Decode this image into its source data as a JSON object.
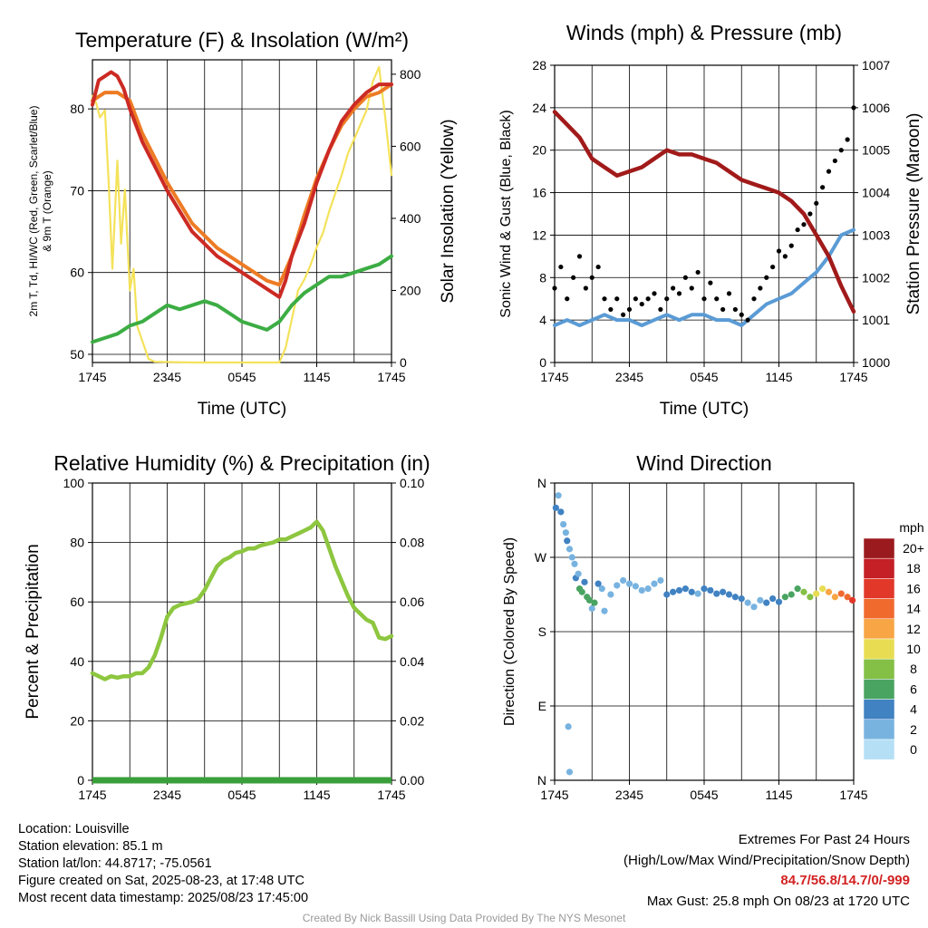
{
  "colors": {
    "temp": "#cc2a24",
    "dewpoint": "#3cad44",
    "heat_index": "#ed7b24",
    "solar": "#f4e25a",
    "wind": "#5a9bd5",
    "gust": "#000000",
    "pressure": "#a11a1a",
    "rh": "#8dc63f",
    "precip": "#3a9f3a",
    "extremes_text": "#d32222"
  },
  "chart_data": [
    {
      "type": "line",
      "title": "Temperature (F) & Insolation (W/m²)",
      "xlabel": "Time (UTC)",
      "ylabel": "2m T, Td, HI/WC (Red, Green, Scarlet/Blue) & 9m T (Orange)",
      "y2label": "Solar Insolation (Yellow)",
      "x_ticks": [
        "1745",
        "2345",
        "0545",
        "1145",
        "1745"
      ],
      "x_range_hours": [
        0,
        24
      ],
      "ylim": [
        49,
        86
      ],
      "y_ticks": [
        50,
        60,
        70,
        80
      ],
      "y2lim": [
        0,
        840
      ],
      "y2_ticks": [
        0,
        200,
        400,
        600,
        800
      ],
      "grid": true,
      "series": [
        {
          "name": "2m T",
          "color_key": "temp",
          "x": [
            0,
            0.5,
            1,
            1.5,
            2,
            2.5,
            3,
            4,
            5,
            6,
            8,
            10,
            12,
            14,
            15,
            15.5,
            16,
            17,
            18,
            19,
            20,
            21,
            22,
            23,
            24
          ],
          "values": [
            80.5,
            83.5,
            84,
            84.5,
            84,
            82.5,
            80,
            76,
            73,
            70,
            65,
            62,
            60,
            58,
            57,
            59,
            62,
            66,
            71,
            75,
            78.5,
            80.5,
            82,
            83,
            83
          ]
        },
        {
          "name": "9m T",
          "color_key": "heat_index",
          "x": [
            0,
            0.5,
            1,
            2,
            3,
            4,
            5,
            6,
            8,
            10,
            12,
            14,
            15,
            16,
            17,
            18,
            19,
            20,
            21,
            22,
            23,
            24
          ],
          "values": [
            81,
            81.5,
            82,
            82,
            81,
            77,
            74,
            71,
            66,
            63,
            61,
            59,
            58.5,
            62,
            67,
            71.5,
            75,
            78,
            80,
            81.5,
            82,
            83
          ]
        },
        {
          "name": "2m Td",
          "color_key": "dewpoint",
          "x": [
            0,
            1,
            2,
            3,
            4,
            5,
            6,
            7,
            8,
            9,
            10,
            11,
            12,
            13,
            14,
            15,
            16,
            17,
            18,
            19,
            20,
            21,
            22,
            23,
            24
          ],
          "values": [
            51.5,
            52,
            52.5,
            53.5,
            54,
            55,
            56,
            55.5,
            56,
            56.5,
            56,
            55,
            54,
            53.5,
            53,
            54,
            56,
            57.5,
            58.5,
            59.5,
            59.5,
            60,
            60.5,
            61,
            62
          ]
        },
        {
          "name": "Solar Insolation",
          "color_key": "solar",
          "axis": "y2",
          "x": [
            0,
            0.3,
            0.6,
            1,
            1.3,
            1.6,
            2,
            2.3,
            2.6,
            3,
            3.3,
            3.6,
            4,
            4.5,
            5,
            8,
            11,
            13,
            15,
            15.5,
            16,
            16.5,
            17,
            17.5,
            18,
            18.5,
            19,
            19.5,
            20,
            20.5,
            21,
            21.5,
            22,
            22.5,
            23,
            23.5,
            24
          ],
          "values": [
            740,
            720,
            680,
            700,
            500,
            260,
            560,
            330,
            480,
            200,
            260,
            100,
            60,
            10,
            2,
            0,
            0,
            0,
            0,
            40,
            120,
            200,
            230,
            270,
            320,
            360,
            420,
            470,
            520,
            580,
            620,
            660,
            700,
            780,
            820,
            680,
            520
          ]
        }
      ]
    },
    {
      "type": "line",
      "title": "Winds (mph) & Pressure (mb)",
      "xlabel": "Time (UTC)",
      "ylabel": "Sonic Wind & Gust (Blue, Black)",
      "y2label": "Station Pressure (Maroon)",
      "x_ticks": [
        "1745",
        "2345",
        "0545",
        "1145",
        "1745"
      ],
      "x_range_hours": [
        0,
        24
      ],
      "ylim": [
        0,
        28
      ],
      "y_ticks": [
        0,
        4,
        8,
        12,
        16,
        20,
        24,
        28
      ],
      "y2lim": [
        1000,
        1007
      ],
      "y2_ticks": [
        1000,
        1001,
        1002,
        1003,
        1004,
        1005,
        1006,
        1007
      ],
      "grid": true,
      "series": [
        {
          "name": "Sonic Wind",
          "color_key": "wind",
          "x": [
            0,
            1,
            2,
            3,
            4,
            5,
            6,
            7,
            8,
            9,
            10,
            11,
            12,
            13,
            14,
            15,
            16,
            17,
            18,
            19,
            20,
            21,
            22,
            23,
            24
          ],
          "values": [
            3.5,
            4,
            3.5,
            4,
            4.5,
            4,
            4,
            3.5,
            4,
            4.5,
            4,
            4.5,
            4.5,
            4,
            4,
            3.5,
            4.5,
            5.5,
            6,
            6.5,
            7.5,
            8.5,
            10,
            12,
            12.5
          ]
        },
        {
          "name": "Gust",
          "color_key": "gust",
          "style": "points",
          "x": [
            0,
            0.5,
            1,
            1.5,
            2,
            2.5,
            3,
            3.5,
            4,
            4.5,
            5,
            5.5,
            6,
            6.5,
            7,
            7.5,
            8,
            8.5,
            9,
            9.5,
            10,
            10.5,
            11,
            11.5,
            12,
            12.5,
            13,
            13.5,
            14,
            14.5,
            15,
            15.5,
            16,
            16.5,
            17,
            17.5,
            18,
            18.5,
            19,
            19.5,
            20,
            20.5,
            21,
            21.5,
            22,
            22.5,
            23,
            23.5,
            24
          ],
          "values": [
            7,
            9,
            6,
            8,
            10,
            7,
            8,
            9,
            6,
            5,
            6,
            4.5,
            5,
            6,
            5.5,
            6,
            6.5,
            5,
            6,
            7,
            6.5,
            8,
            7,
            8.5,
            6,
            7.5,
            6,
            5,
            6.5,
            5,
            4.5,
            4,
            6,
            7,
            8,
            9,
            10.5,
            10,
            11,
            12.5,
            13,
            14,
            15,
            16.5,
            18,
            19,
            20,
            21,
            24
          ]
        },
        {
          "name": "Station Pressure",
          "color_key": "pressure",
          "axis": "y2",
          "x": [
            0,
            1,
            2,
            3,
            4,
            5,
            6,
            7,
            8,
            9,
            10,
            11,
            12,
            13,
            14,
            15,
            16,
            17,
            18,
            19,
            20,
            21,
            22,
            23,
            24
          ],
          "values": [
            1005.9,
            1005.6,
            1005.3,
            1004.8,
            1004.6,
            1004.4,
            1004.5,
            1004.6,
            1004.8,
            1005.0,
            1004.9,
            1004.9,
            1004.8,
            1004.7,
            1004.5,
            1004.3,
            1004.2,
            1004.1,
            1004.0,
            1003.8,
            1003.5,
            1003.0,
            1002.5,
            1001.8,
            1001.2
          ]
        }
      ]
    },
    {
      "type": "line",
      "title": "Relative Humidity (%) & Precipitation (in)",
      "xlabel": "",
      "ylabel": "Percent & Precipitation",
      "x_ticks": [
        "1745",
        "2345",
        "0545",
        "1145",
        "1745"
      ],
      "x_range_hours": [
        0,
        24
      ],
      "ylim": [
        0,
        100
      ],
      "y_ticks": [
        0,
        20,
        40,
        60,
        80,
        100
      ],
      "y2lim": [
        0,
        0.1
      ],
      "y2_ticks": [
        "0.00",
        "0.02",
        "0.04",
        "0.06",
        "0.08",
        "0.10"
      ],
      "grid": true,
      "series": [
        {
          "name": "Relative Humidity",
          "color_key": "rh",
          "x": [
            0,
            0.5,
            1,
            1.5,
            2,
            2.5,
            3,
            3.5,
            4,
            4.5,
            5,
            5.5,
            6,
            6.5,
            7,
            7.5,
            8,
            8.5,
            9,
            9.5,
            10,
            10.5,
            11,
            11.5,
            12,
            12.5,
            13,
            13.5,
            14,
            14.5,
            15,
            15.5,
            16,
            16.5,
            17,
            17.5,
            18,
            18.5,
            19,
            19.5,
            20,
            20.5,
            21,
            21.5,
            22,
            22.5,
            23,
            23.5,
            24
          ],
          "values": [
            36,
            35,
            34,
            35,
            34.5,
            35,
            35,
            36,
            36,
            38,
            42,
            48,
            55,
            58,
            59,
            59.5,
            60,
            61,
            64,
            68,
            72,
            74,
            75,
            76.5,
            77,
            78,
            78,
            79,
            79.5,
            80,
            81,
            81,
            82,
            83,
            84,
            85,
            87,
            84,
            78,
            72,
            67,
            62,
            58,
            56,
            54,
            53,
            48,
            47.5,
            48.5
          ]
        },
        {
          "name": "Precipitation",
          "color_key": "precip",
          "axis": "y2",
          "x": [
            0,
            24
          ],
          "values": [
            0,
            0
          ]
        }
      ]
    },
    {
      "type": "scatter",
      "title": "Wind Direction",
      "ylabel": "Direction (Colored By Speed)",
      "x_ticks": [
        "1745",
        "2345",
        "0545",
        "1145",
        "1745"
      ],
      "x_range_hours": [
        0,
        24
      ],
      "y_ticks": [
        "N",
        "E",
        "S",
        "W",
        "N"
      ],
      "ylim_degrees": [
        0,
        360
      ],
      "grid": true,
      "colorbar": {
        "title": "mph",
        "labels": [
          "20+",
          "18",
          "16",
          "14",
          "12",
          "10",
          "8",
          "6",
          "4",
          "2",
          "0"
        ],
        "colors": [
          "#9b1a1d",
          "#c42026",
          "#e2382a",
          "#f06a2e",
          "#f8a545",
          "#e8dd52",
          "#84bf46",
          "#49a461",
          "#4082c2",
          "#78b3e0",
          "#b5dff5"
        ]
      },
      "points": [
        {
          "x": 0.1,
          "dir": 330,
          "speed": 4
        },
        {
          "x": 0.3,
          "dir": 345,
          "speed": 3
        },
        {
          "x": 0.5,
          "dir": 325,
          "speed": 4
        },
        {
          "x": 0.7,
          "dir": 310,
          "speed": 3
        },
        {
          "x": 0.9,
          "dir": 300,
          "speed": 3
        },
        {
          "x": 1.0,
          "dir": 290,
          "speed": 4
        },
        {
          "x": 1.2,
          "dir": 280,
          "speed": 2
        },
        {
          "x": 1.4,
          "dir": 270,
          "speed": 2
        },
        {
          "x": 1.6,
          "dir": 262,
          "speed": 3
        },
        {
          "x": 1.7,
          "dir": 245,
          "speed": 4
        },
        {
          "x": 1.9,
          "dir": 250,
          "speed": 3
        },
        {
          "x": 2.0,
          "dir": 232,
          "speed": 6
        },
        {
          "x": 2.2,
          "dir": 228,
          "speed": 6
        },
        {
          "x": 2.4,
          "dir": 240,
          "speed": 5
        },
        {
          "x": 2.6,
          "dir": 222,
          "speed": 7
        },
        {
          "x": 2.8,
          "dir": 218,
          "speed": 6
        },
        {
          "x": 3.0,
          "dir": 208,
          "speed": 3
        },
        {
          "x": 3.2,
          "dir": 215,
          "speed": 7
        },
        {
          "x": 3.5,
          "dir": 238,
          "speed": 4
        },
        {
          "x": 3.8,
          "dir": 232,
          "speed": 3
        },
        {
          "x": 4.0,
          "dir": 205,
          "speed": 2
        },
        {
          "x": 4.5,
          "dir": 225,
          "speed": 3
        },
        {
          "x": 5.0,
          "dir": 236,
          "speed": 2
        },
        {
          "x": 5.5,
          "dir": 242,
          "speed": 3
        },
        {
          "x": 6.0,
          "dir": 238,
          "speed": 2
        },
        {
          "x": 6.5,
          "dir": 235,
          "speed": 3
        },
        {
          "x": 7.0,
          "dir": 230,
          "speed": 2
        },
        {
          "x": 7.5,
          "dir": 232,
          "speed": 2
        },
        {
          "x": 8.0,
          "dir": 238,
          "speed": 3
        },
        {
          "x": 8.5,
          "dir": 242,
          "speed": 3
        },
        {
          "x": 9.0,
          "dir": 225,
          "speed": 4
        },
        {
          "x": 9.5,
          "dir": 228,
          "speed": 4
        },
        {
          "x": 10.0,
          "dir": 230,
          "speed": 4
        },
        {
          "x": 10.5,
          "dir": 232,
          "speed": 4
        },
        {
          "x": 11.0,
          "dir": 228,
          "speed": 4
        },
        {
          "x": 11.5,
          "dir": 226,
          "speed": 3
        },
        {
          "x": 12.0,
          "dir": 232,
          "speed": 4
        },
        {
          "x": 12.5,
          "dir": 230,
          "speed": 4
        },
        {
          "x": 13.0,
          "dir": 226,
          "speed": 4
        },
        {
          "x": 13.5,
          "dir": 228,
          "speed": 4
        },
        {
          "x": 14.0,
          "dir": 225,
          "speed": 4
        },
        {
          "x": 14.5,
          "dir": 222,
          "speed": 4
        },
        {
          "x": 15.0,
          "dir": 220,
          "speed": 4
        },
        {
          "x": 15.5,
          "dir": 215,
          "speed": 3
        },
        {
          "x": 16.0,
          "dir": 210,
          "speed": 2
        },
        {
          "x": 16.5,
          "dir": 218,
          "speed": 3
        },
        {
          "x": 17.0,
          "dir": 215,
          "speed": 4
        },
        {
          "x": 17.5,
          "dir": 220,
          "speed": 5
        },
        {
          "x": 18.0,
          "dir": 216,
          "speed": 4
        },
        {
          "x": 18.5,
          "dir": 222,
          "speed": 6
        },
        {
          "x": 19.0,
          "dir": 225,
          "speed": 7
        },
        {
          "x": 19.5,
          "dir": 232,
          "speed": 7
        },
        {
          "x": 20.0,
          "dir": 228,
          "speed": 8
        },
        {
          "x": 20.5,
          "dir": 222,
          "speed": 9
        },
        {
          "x": 21.0,
          "dir": 226,
          "speed": 10
        },
        {
          "x": 21.5,
          "dir": 232,
          "speed": 11
        },
        {
          "x": 22.0,
          "dir": 228,
          "speed": 12
        },
        {
          "x": 22.5,
          "dir": 222,
          "speed": 13
        },
        {
          "x": 23.0,
          "dir": 226,
          "speed": 14
        },
        {
          "x": 23.5,
          "dir": 222,
          "speed": 15
        },
        {
          "x": 23.9,
          "dir": 218,
          "speed": 16
        },
        {
          "x": 1.1,
          "dir": 65,
          "speed": 2
        },
        {
          "x": 1.2,
          "dir": 10,
          "speed": 2
        }
      ]
    }
  ],
  "info": {
    "location": "Location: Louisville",
    "elevation": "Station elevation: 85.1 m",
    "latlon": "Station lat/lon: 44.8717; -75.0561",
    "created": "Figure created on Sat, 2025-08-23, at 17:48 UTC",
    "recent": "Most recent data timestamp: 2025/08/23 17:45:00"
  },
  "extremes": {
    "heading": "Extremes For Past 24 Hours",
    "subheading": "(High/Low/Max Wind/Precipitation/Snow Depth)",
    "values": "84.7/56.8/14.7/0/-999",
    "max_gust": "Max Gust: 25.8 mph On 08/23 at 1720 UTC"
  },
  "credit": "Created By Nick Bassill Using Data Provided By The NYS Mesonet"
}
